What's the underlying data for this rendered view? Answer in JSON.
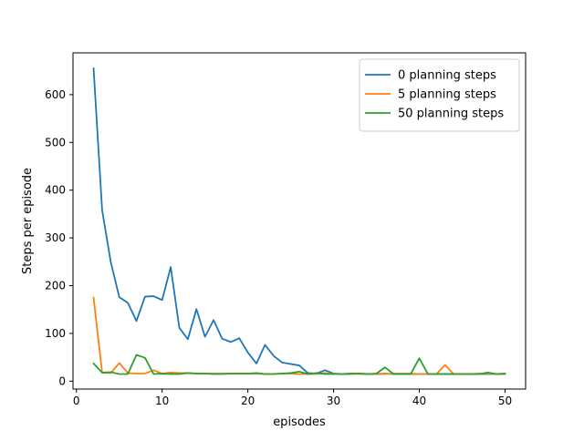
{
  "chart_data": {
    "type": "line",
    "title": "",
    "xlabel": "episodes",
    "ylabel": "Steps per episode",
    "xlim": [
      -0.4,
      52.4
    ],
    "ylim": [
      -16.5,
      687.5
    ],
    "xticks": [
      0,
      10,
      20,
      30,
      40,
      50
    ],
    "yticks": [
      0,
      100,
      200,
      300,
      400,
      500,
      600
    ],
    "grid": false,
    "legend_position": "top-right",
    "x": [
      2,
      3,
      4,
      5,
      6,
      7,
      8,
      9,
      10,
      11,
      12,
      13,
      14,
      15,
      16,
      17,
      18,
      19,
      20,
      21,
      22,
      23,
      24,
      25,
      26,
      27,
      28,
      29,
      30,
      31,
      32,
      33,
      34,
      35,
      36,
      37,
      38,
      39,
      40,
      41,
      42,
      43,
      44,
      45,
      46,
      47,
      48,
      49,
      50
    ],
    "series": [
      {
        "name": "0 planning steps",
        "color": "#1f77b4",
        "values": [
          655,
          358,
          250,
          176,
          164,
          126,
          177,
          178,
          170,
          239,
          112,
          88,
          151,
          93,
          128,
          89,
          82,
          90,
          60,
          37,
          76,
          53,
          39,
          36,
          33,
          17,
          16,
          23,
          16,
          15,
          15,
          16,
          15,
          15,
          16,
          15,
          15,
          15,
          15,
          15,
          15,
          15,
          15,
          15,
          15,
          15,
          15,
          15,
          15
        ]
      },
      {
        "name": "5 planning steps",
        "color": "#ff7f0e",
        "values": [
          175,
          18,
          17,
          38,
          17,
          16,
          16,
          23,
          16,
          18,
          17,
          17,
          16,
          16,
          16,
          16,
          16,
          16,
          16,
          16,
          15,
          15,
          16,
          16,
          15,
          15,
          15,
          17,
          15,
          15,
          16,
          15,
          15,
          15,
          15,
          16,
          16,
          16,
          15,
          15,
          15,
          34,
          15,
          15,
          15,
          16,
          16,
          15,
          15
        ]
      },
      {
        "name": "50 planning steps",
        "color": "#2ca02c",
        "values": [
          37,
          18,
          19,
          15,
          15,
          55,
          49,
          15,
          16,
          15,
          15,
          17,
          16,
          16,
          15,
          15,
          16,
          16,
          16,
          17,
          15,
          15,
          16,
          17,
          20,
          15,
          17,
          15,
          15,
          15,
          16,
          16,
          15,
          16,
          29,
          15,
          15,
          15,
          48,
          15,
          15,
          15,
          15,
          15,
          15,
          15,
          18,
          15,
          16
        ]
      }
    ]
  }
}
